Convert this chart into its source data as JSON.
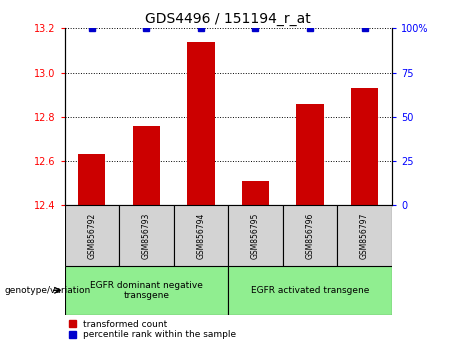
{
  "title": "GDS4496 / 151194_r_at",
  "samples": [
    "GSM856792",
    "GSM856793",
    "GSM856794",
    "GSM856795",
    "GSM856796",
    "GSM856797"
  ],
  "red_values": [
    12.63,
    12.76,
    13.14,
    12.51,
    12.86,
    12.93
  ],
  "blue_values": [
    100,
    100,
    100,
    100,
    100,
    100
  ],
  "ylim_left": [
    12.4,
    13.2
  ],
  "ylim_right": [
    0,
    100
  ],
  "yticks_left": [
    12.4,
    12.6,
    12.8,
    13.0,
    13.2
  ],
  "yticks_right": [
    0,
    25,
    50,
    75,
    100
  ],
  "ytick_labels_right": [
    "0",
    "25",
    "50",
    "75",
    "100%"
  ],
  "group1_label": "EGFR dominant negative\ntransgene",
  "group2_label": "EGFR activated transgene",
  "group1_indices": [
    0,
    1,
    2
  ],
  "group2_indices": [
    3,
    4,
    5
  ],
  "legend_red": "transformed count",
  "legend_blue": "percentile rank within the sample",
  "genotype_label": "genotype/variation",
  "bar_color": "#cc0000",
  "dot_color": "#0000cc",
  "group_bg": "#90ee90",
  "sample_box_bg": "#d3d3d3",
  "fig_width": 4.61,
  "fig_height": 3.54,
  "dpi": 100
}
